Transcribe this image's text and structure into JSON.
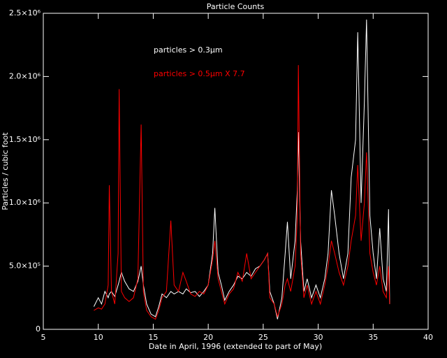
{
  "chart_data": {
    "type": "line",
    "title": "Particle Counts",
    "x_label": "Date in April, 1996 (extended to part of May)",
    "y_label": "Particles / cubic foot",
    "xlim": [
      5,
      40
    ],
    "xticks": [
      5,
      10,
      15,
      20,
      25,
      30,
      35,
      40
    ],
    "ylim": [
      0,
      2500000
    ],
    "yticks": [
      0,
      {
        "value": 500000,
        "label": "5.0×10⁵"
      },
      {
        "value": 1000000,
        "label": "1.0×10⁶"
      },
      {
        "value": 1500000,
        "label": "1.5×10⁶"
      },
      {
        "value": 2000000,
        "label": "2.0×10⁶"
      },
      {
        "value": 2500000,
        "label": "2.5×10⁶"
      }
    ],
    "legend": "upper left",
    "x": [
      9.6,
      10.0,
      10.3,
      10.6,
      10.9,
      11.0,
      11.2,
      11.5,
      11.8,
      11.9,
      12.1,
      12.4,
      12.8,
      13.2,
      13.6,
      13.9,
      14.1,
      14.4,
      14.8,
      15.2,
      15.5,
      15.8,
      16.2,
      16.6,
      16.9,
      17.3,
      17.7,
      18.0,
      18.4,
      18.8,
      19.2,
      19.6,
      20.0,
      20.4,
      20.6,
      20.9,
      21.2,
      21.5,
      21.9,
      22.3,
      22.7,
      23.1,
      23.5,
      23.9,
      24.3,
      24.7,
      25.1,
      25.4,
      25.6,
      26.0,
      26.3,
      26.7,
      27.0,
      27.2,
      27.5,
      27.9,
      28.1,
      28.2,
      28.4,
      28.7,
      29.0,
      29.4,
      29.8,
      30.2,
      30.6,
      30.9,
      31.2,
      31.5,
      31.9,
      32.3,
      32.7,
      33.0,
      33.4,
      33.6,
      33.9,
      34.2,
      34.4,
      34.7,
      35.0,
      35.3,
      35.6,
      35.9,
      36.2,
      36.4,
      36.5
    ],
    "series": [
      {
        "name": "particles > 0.3μm",
        "color": "#ffffff",
        "values": [
          180000,
          250000,
          200000,
          300000,
          250000,
          280000,
          300000,
          260000,
          350000,
          380000,
          450000,
          380000,
          320000,
          300000,
          380000,
          500000,
          350000,
          200000,
          120000,
          100000,
          180000,
          280000,
          250000,
          300000,
          280000,
          300000,
          280000,
          320000,
          290000,
          300000,
          260000,
          300000,
          350000,
          600000,
          960000,
          450000,
          350000,
          230000,
          300000,
          350000,
          420000,
          400000,
          450000,
          420000,
          480000,
          500000,
          550000,
          600000,
          300000,
          200000,
          80000,
          250000,
          600000,
          850000,
          400000,
          700000,
          1100000,
          1560000,
          700000,
          300000,
          400000,
          250000,
          350000,
          250000,
          400000,
          600000,
          1100000,
          900000,
          600000,
          400000,
          600000,
          1200000,
          1500000,
          2350000,
          1000000,
          1800000,
          2450000,
          900000,
          600000,
          400000,
          800000,
          400000,
          300000,
          950000,
          200000
        ]
      },
      {
        "name": "particles > 0.5μm X 7.7",
        "color": "#ff0000",
        "values": [
          150000,
          170000,
          160000,
          200000,
          350000,
          1140000,
          300000,
          200000,
          600000,
          1900000,
          300000,
          250000,
          220000,
          250000,
          400000,
          1620000,
          300000,
          150000,
          100000,
          80000,
          150000,
          250000,
          300000,
          860000,
          350000,
          300000,
          450000,
          380000,
          280000,
          260000,
          300000,
          280000,
          350000,
          550000,
          700000,
          400000,
          300000,
          200000,
          280000,
          320000,
          450000,
          380000,
          600000,
          400000,
          450000,
          500000,
          550000,
          600000,
          250000,
          200000,
          100000,
          200000,
          350000,
          400000,
          300000,
          500000,
          900000,
          2090000,
          600000,
          250000,
          350000,
          200000,
          300000,
          200000,
          350000,
          500000,
          700000,
          600000,
          450000,
          350000,
          500000,
          700000,
          900000,
          1300000,
          700000,
          1000000,
          1400000,
          600000,
          450000,
          350000,
          500000,
          300000,
          250000,
          500000,
          200000
        ]
      }
    ]
  }
}
